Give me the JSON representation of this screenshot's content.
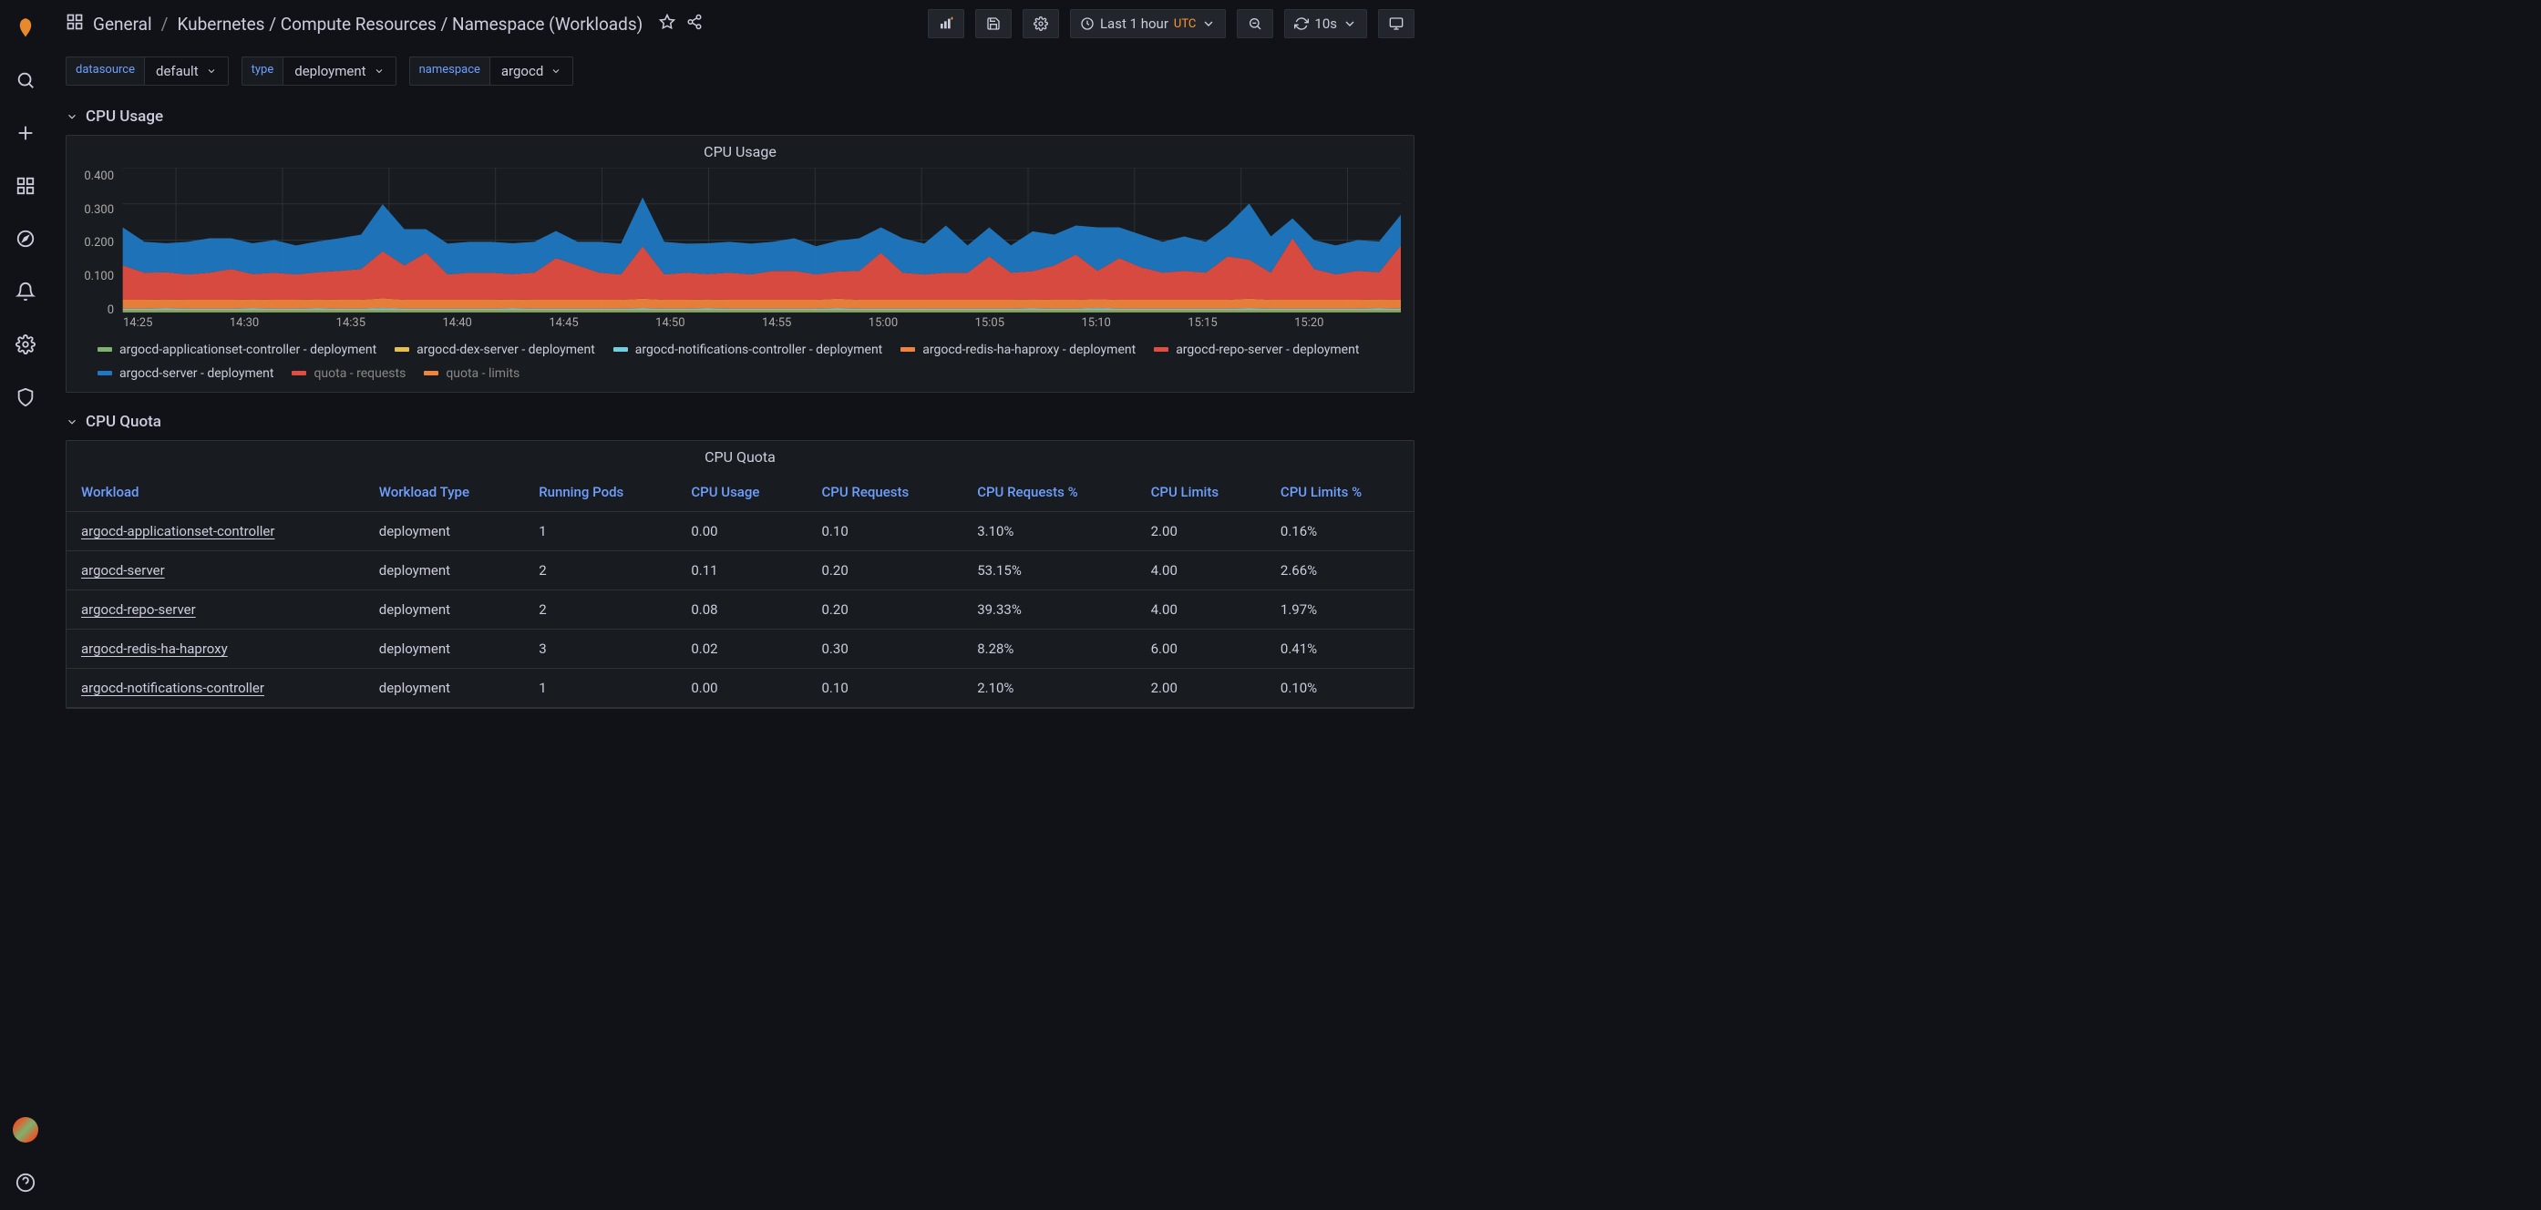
{
  "breadcrumb": {
    "root": "General",
    "title": "Kubernetes / Compute Resources / Namespace (Workloads)"
  },
  "time": {
    "range": "Last 1 hour",
    "tz": "UTC",
    "refresh": "10s"
  },
  "vars": {
    "datasource": {
      "label": "datasource",
      "value": "default"
    },
    "type": {
      "label": "type",
      "value": "deployment"
    },
    "namespace": {
      "label": "namespace",
      "value": "argocd"
    }
  },
  "rows": {
    "cpu_usage": "CPU Usage",
    "cpu_quota": "CPU Quota"
  },
  "chart": {
    "title": "CPU Usage",
    "type": "area-stacked",
    "ylim": [
      0,
      0.4
    ],
    "ytick_step": 0.1,
    "yticks": [
      "0.400",
      "0.300",
      "0.200",
      "0.100",
      "0"
    ],
    "xticks": [
      "14:25",
      "14:30",
      "14:35",
      "14:40",
      "14:45",
      "14:50",
      "14:55",
      "15:00",
      "15:05",
      "15:10",
      "15:15",
      "15:20"
    ],
    "background_color": "#181b1f",
    "grid_color": "#2c3235",
    "legend": [
      {
        "label": "argocd-applicationset-controller - deployment",
        "color": "#7eb26d"
      },
      {
        "label": "argocd-dex-server - deployment",
        "color": "#e5c04a"
      },
      {
        "label": "argocd-notifications-controller - deployment",
        "color": "#6ed0e0"
      },
      {
        "label": "argocd-redis-ha-haproxy - deployment",
        "color": "#ef843c"
      },
      {
        "label": "argocd-repo-server - deployment",
        "color": "#e24d42"
      },
      {
        "label": "argocd-server - deployment",
        "color": "#1f78c1"
      },
      {
        "label": "quota - requests",
        "color": "#e24d42",
        "dim": true
      },
      {
        "label": "quota - limits",
        "color": "#ef843c",
        "dim": true
      }
    ],
    "series": {
      "applicationset": {
        "color": "#7eb26d",
        "values": [
          0.005,
          0.005,
          0.005,
          0.005,
          0.005,
          0.005,
          0.005,
          0.005,
          0.005,
          0.005,
          0.005,
          0.005,
          0.005,
          0.005,
          0.005,
          0.005,
          0.005,
          0.005,
          0.005,
          0.005,
          0.005,
          0.005,
          0.005,
          0.005,
          0.005,
          0.005,
          0.005,
          0.005,
          0.005,
          0.005,
          0.005,
          0.005,
          0.005,
          0.005,
          0.005,
          0.005,
          0.005,
          0.005,
          0.005,
          0.005,
          0.005,
          0.005,
          0.005,
          0.005,
          0.005,
          0.005,
          0.005,
          0.005,
          0.005,
          0.005,
          0.005,
          0.005,
          0.005,
          0.005,
          0.005,
          0.005,
          0.005,
          0.005,
          0.005,
          0.005
        ]
      },
      "dex": {
        "color": "#e5c04a",
        "values": [
          0.002,
          0.002,
          0.002,
          0.002,
          0.002,
          0.002,
          0.002,
          0.002,
          0.002,
          0.002,
          0.002,
          0.002,
          0.002,
          0.002,
          0.002,
          0.002,
          0.002,
          0.002,
          0.002,
          0.002,
          0.002,
          0.002,
          0.002,
          0.002,
          0.002,
          0.002,
          0.002,
          0.002,
          0.002,
          0.002,
          0.002,
          0.002,
          0.002,
          0.002,
          0.002,
          0.002,
          0.002,
          0.002,
          0.002,
          0.002,
          0.002,
          0.002,
          0.002,
          0.002,
          0.002,
          0.002,
          0.002,
          0.002,
          0.002,
          0.002,
          0.002,
          0.002,
          0.002,
          0.002,
          0.002,
          0.002,
          0.002,
          0.002,
          0.002,
          0.002
        ]
      },
      "notifications": {
        "color": "#6ed0e0",
        "values": [
          0.003,
          0.003,
          0.004,
          0.003,
          0.003,
          0.003,
          0.004,
          0.003,
          0.003,
          0.004,
          0.003,
          0.003,
          0.005,
          0.003,
          0.003,
          0.003,
          0.003,
          0.003,
          0.004,
          0.003,
          0.003,
          0.003,
          0.003,
          0.003,
          0.004,
          0.003,
          0.003,
          0.004,
          0.003,
          0.003,
          0.003,
          0.003,
          0.003,
          0.004,
          0.003,
          0.003,
          0.003,
          0.003,
          0.003,
          0.003,
          0.003,
          0.003,
          0.004,
          0.003,
          0.003,
          0.005,
          0.003,
          0.003,
          0.003,
          0.003,
          0.003,
          0.003,
          0.004,
          0.003,
          0.003,
          0.003,
          0.003,
          0.003,
          0.004,
          0.003
        ]
      },
      "haproxy": {
        "color": "#ef843c",
        "values": [
          0.025,
          0.025,
          0.025,
          0.025,
          0.025,
          0.025,
          0.025,
          0.025,
          0.025,
          0.025,
          0.025,
          0.025,
          0.027,
          0.025,
          0.025,
          0.025,
          0.025,
          0.025,
          0.025,
          0.025,
          0.025,
          0.025,
          0.025,
          0.025,
          0.027,
          0.025,
          0.025,
          0.025,
          0.025,
          0.025,
          0.025,
          0.025,
          0.025,
          0.027,
          0.025,
          0.025,
          0.025,
          0.025,
          0.025,
          0.025,
          0.025,
          0.025,
          0.025,
          0.025,
          0.025,
          0.025,
          0.025,
          0.025,
          0.025,
          0.025,
          0.025,
          0.025,
          0.027,
          0.025,
          0.025,
          0.025,
          0.025,
          0.025,
          0.025,
          0.025
        ]
      },
      "repo": {
        "color": "#e24d42",
        "values": [
          0.095,
          0.075,
          0.075,
          0.07,
          0.075,
          0.085,
          0.07,
          0.075,
          0.07,
          0.075,
          0.08,
          0.085,
          0.13,
          0.095,
          0.13,
          0.07,
          0.075,
          0.075,
          0.07,
          0.075,
          0.115,
          0.095,
          0.075,
          0.07,
          0.145,
          0.07,
          0.075,
          0.07,
          0.075,
          0.07,
          0.08,
          0.08,
          0.07,
          0.075,
          0.08,
          0.13,
          0.075,
          0.07,
          0.075,
          0.075,
          0.12,
          0.075,
          0.078,
          0.095,
          0.125,
          0.078,
          0.115,
          0.09,
          0.075,
          0.08,
          0.075,
          0.12,
          0.108,
          0.075,
          0.17,
          0.085,
          0.07,
          0.08,
          0.075,
          0.15
        ]
      },
      "server": {
        "color": "#1f78c1",
        "values": [
          0.105,
          0.085,
          0.08,
          0.09,
          0.095,
          0.085,
          0.085,
          0.09,
          0.08,
          0.085,
          0.09,
          0.095,
          0.13,
          0.1,
          0.065,
          0.085,
          0.085,
          0.085,
          0.085,
          0.085,
          0.075,
          0.065,
          0.085,
          0.085,
          0.135,
          0.09,
          0.08,
          0.085,
          0.085,
          0.085,
          0.08,
          0.09,
          0.078,
          0.085,
          0.09,
          0.07,
          0.095,
          0.085,
          0.13,
          0.075,
          0.08,
          0.075,
          0.11,
          0.085,
          0.08,
          0.12,
          0.085,
          0.09,
          0.085,
          0.095,
          0.085,
          0.085,
          0.155,
          0.1,
          0.055,
          0.08,
          0.08,
          0.085,
          0.085,
          0.085
        ]
      }
    }
  },
  "table": {
    "title": "CPU Quota",
    "columns": [
      "Workload",
      "Workload Type",
      "Running Pods",
      "CPU Usage",
      "CPU Requests",
      "CPU Requests %",
      "CPU Limits",
      "CPU Limits %"
    ],
    "rows": [
      [
        "argocd-applicationset-controller",
        "deployment",
        "1",
        "0.00",
        "0.10",
        "3.10%",
        "2.00",
        "0.16%"
      ],
      [
        "argocd-server",
        "deployment",
        "2",
        "0.11",
        "0.20",
        "53.15%",
        "4.00",
        "2.66%"
      ],
      [
        "argocd-repo-server",
        "deployment",
        "2",
        "0.08",
        "0.20",
        "39.33%",
        "4.00",
        "1.97%"
      ],
      [
        "argocd-redis-ha-haproxy",
        "deployment",
        "3",
        "0.02",
        "0.30",
        "8.28%",
        "6.00",
        "0.41%"
      ],
      [
        "argocd-notifications-controller",
        "deployment",
        "1",
        "0.00",
        "0.10",
        "2.10%",
        "2.00",
        "0.10%"
      ]
    ]
  }
}
